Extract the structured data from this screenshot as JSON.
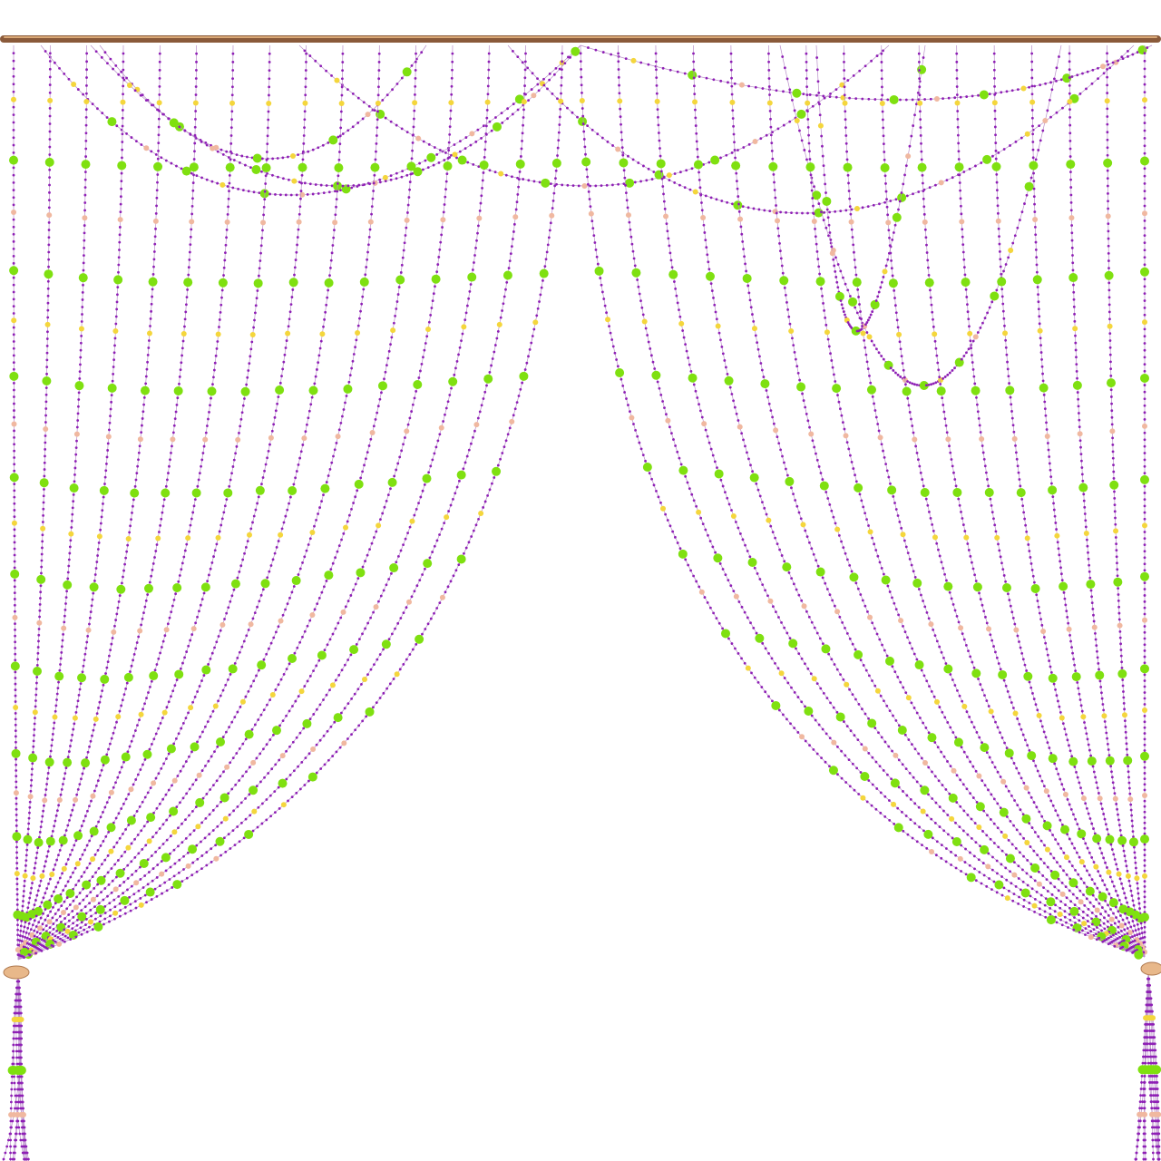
{
  "colors": {
    "background": "#ffffff",
    "rod": "#8a5a3a",
    "rod_highlight": "#d9a877",
    "thread": "#b98fc9",
    "bead_purple": "#8e1fb5",
    "bead_green": "#7fe010",
    "bead_yellow": "#f4d63c",
    "bead_pink": "#f0b8a0",
    "tieback": "#e8b88a"
  },
  "curtain": {
    "left_strands": 16,
    "right_strands": 16,
    "swags": 7
  }
}
